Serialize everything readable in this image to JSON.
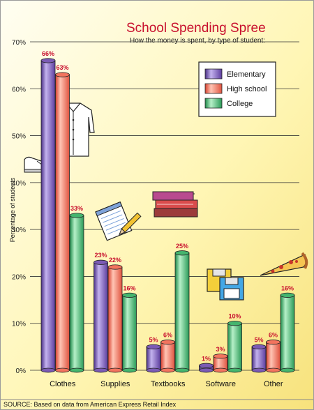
{
  "chart_data": {
    "type": "bar",
    "title": "School Spending Spree",
    "subtitle": "How the money is spent, by type of student:",
    "ylabel": "Percentage of students",
    "xlabel": "",
    "ylim": [
      0,
      70
    ],
    "yticks": [
      "0%",
      "10%",
      "20%",
      "30%",
      "40%",
      "50%",
      "60%",
      "70%"
    ],
    "categories": [
      "Clothes",
      "Supplies",
      "Textbooks",
      "Software",
      "Other"
    ],
    "series": [
      {
        "name": "Elementary",
        "color": "#7b5bb5",
        "values": [
          66,
          23,
          5,
          1,
          5
        ],
        "labels": [
          "66%",
          "23%",
          "5%",
          "1%",
          "5%"
        ]
      },
      {
        "name": "High school",
        "color": "#f2745e",
        "values": [
          63,
          22,
          6,
          3,
          6
        ],
        "labels": [
          "63%",
          "22%",
          "6%",
          "3%",
          "6%"
        ]
      },
      {
        "name": "College",
        "color": "#45b56e",
        "values": [
          33,
          16,
          25,
          10,
          16
        ],
        "labels": [
          "33%",
          "16%",
          "25%",
          "10%",
          "16%"
        ]
      }
    ],
    "grid": true,
    "legend": "top-right",
    "source": "SOURCE: Based on data from American Express Retail Index"
  },
  "icons": [
    "shirt-icon",
    "sneaker-icon",
    "notepad-pencil-icon",
    "books-icon",
    "floppy-disk-icon",
    "pizza-slice-icon"
  ]
}
